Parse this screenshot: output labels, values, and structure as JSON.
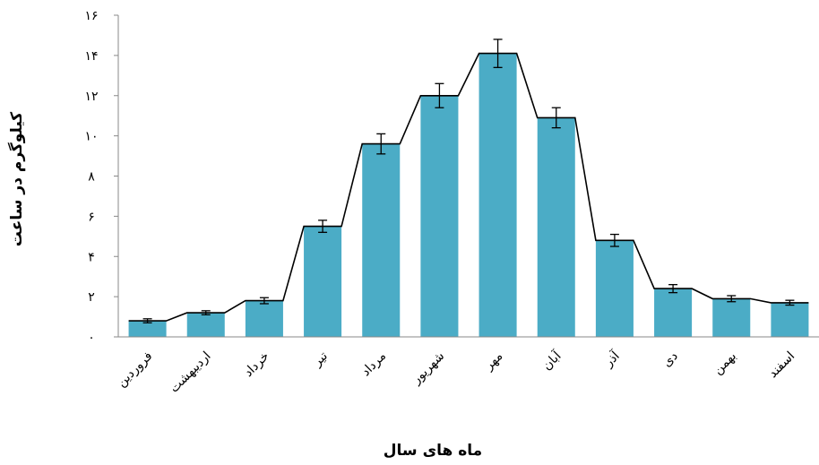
{
  "chart_data": {
    "type": "bar",
    "categories": [
      "فروردین",
      "اردیبهشت",
      "خرداد",
      "تیر",
      "مرداد",
      "شهریور",
      "مهر",
      "آبان",
      "آذر",
      "دی",
      "بهمن",
      "اسفند"
    ],
    "values": [
      0.8,
      1.2,
      1.8,
      5.5,
      9.6,
      12.0,
      14.1,
      10.9,
      4.8,
      2.4,
      1.9,
      1.7
    ],
    "error": [
      0.1,
      0.1,
      0.15,
      0.3,
      0.5,
      0.6,
      0.7,
      0.5,
      0.3,
      0.2,
      0.15,
      0.12
    ],
    "bar_color": "#4bacc6",
    "line_color": "#000000",
    "ylim": [
      0,
      16
    ],
    "yticks": [
      0,
      2,
      4,
      6,
      8,
      10,
      12,
      14,
      16
    ],
    "ytick_labels": [
      "۰",
      "۲",
      "۴",
      "۶",
      "۸",
      "۱۰",
      "۱۲",
      "۱۴",
      "۱۶"
    ],
    "xlabel": "ماه های سال",
    "ylabel": "کیلوگرم در ساعت",
    "grid": false
  }
}
